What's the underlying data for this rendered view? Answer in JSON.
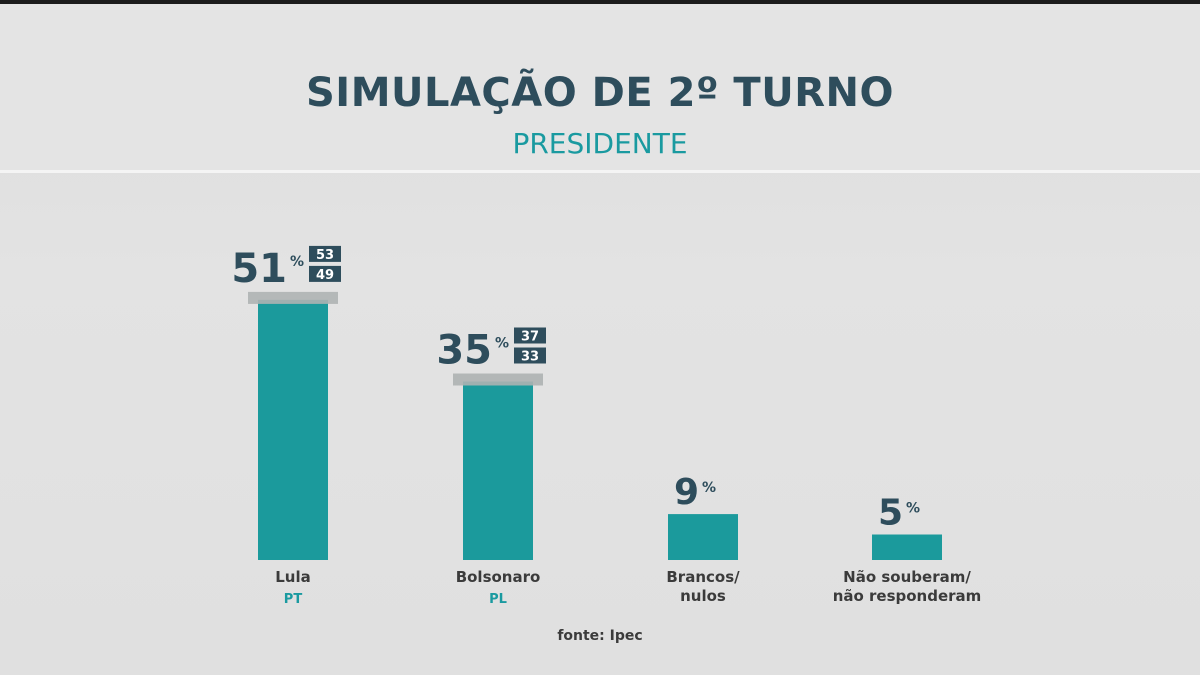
{
  "header": {
    "title": "SIMULAÇÃO DE 2º TURNO",
    "subtitle": "PRESIDENTE"
  },
  "source": "fonte: Ipec",
  "colors": {
    "bar": "#1b9a9c",
    "title": "#2e4d5c",
    "subtitle": "#1a9aa0",
    "value_text": "#2e4d5c",
    "margin_band": "#aeb2b3",
    "range_box": "#2e4d5c",
    "party": "#1a9aa0"
  },
  "chart_data": {
    "type": "bar",
    "title": "SIMULAÇÃO DE 2º TURNO",
    "subtitle": "PRESIDENTE",
    "unit": "%",
    "categories": [
      {
        "label": [
          "Lula"
        ],
        "party": "PT",
        "value": 51,
        "range_max": 53,
        "range_min": 49
      },
      {
        "label": [
          "Bolsonaro"
        ],
        "party": "PL",
        "value": 35,
        "range_max": 37,
        "range_min": 33
      },
      {
        "label": [
          "Brancos/",
          "nulos"
        ],
        "party": "",
        "value": 9
      },
      {
        "label": [
          "Não souberam/",
          "não responderam"
        ],
        "party": "",
        "value": 5
      }
    ],
    "ylim": [
      0,
      55
    ],
    "grid": false,
    "legend": "none"
  }
}
